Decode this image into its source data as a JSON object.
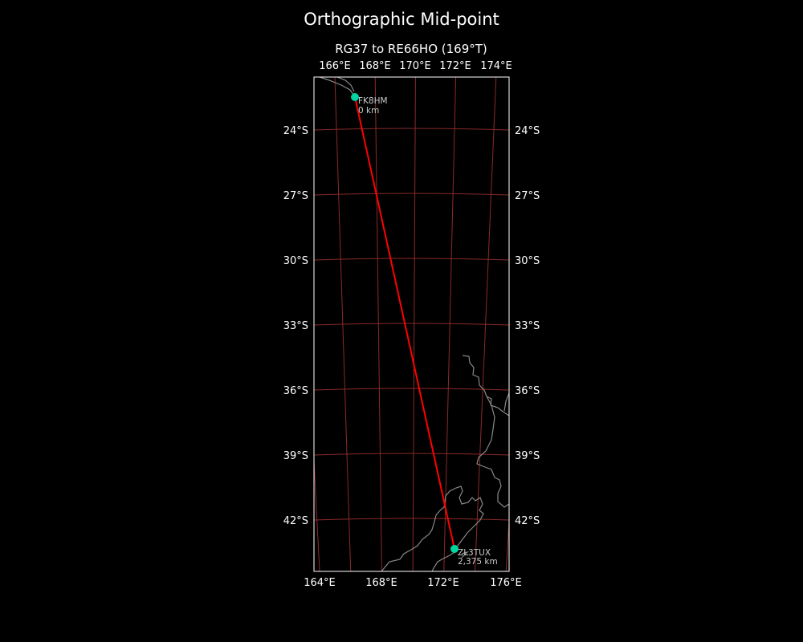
{
  "title": "Orthographic Mid-point",
  "subtitle": "RG37 to RE66HO (169°T)",
  "colors": {
    "background": "#000000",
    "grid": "#8b2a2a",
    "path": "#ff0000",
    "marker": "#00d4a0",
    "coast": "#888888",
    "frame": "#ffffff"
  },
  "top_lon_ticks": [
    "166°E",
    "168°E",
    "170°E",
    "172°E",
    "174°E"
  ],
  "bottom_lon_ticks": [
    "164°E",
    "168°E",
    "172°E",
    "176°E"
  ],
  "lat_ticks": [
    "24°S",
    "27°S",
    "30°S",
    "33°S",
    "36°S",
    "39°S",
    "42°S"
  ],
  "points": [
    {
      "call": "FK8HM",
      "dist": "0 km"
    },
    {
      "call": "ZL3TUX",
      "dist": "2,375 km"
    }
  ]
}
